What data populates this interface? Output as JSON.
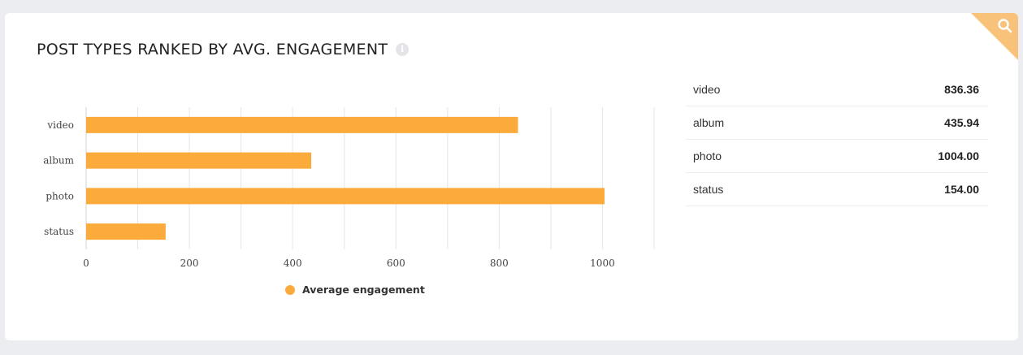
{
  "widget": {
    "title": "POST TYPES RANKED BY AVG. ENGAGEMENT",
    "info_icon": "info-icon",
    "corner_icon": "search-icon"
  },
  "colors": {
    "bar": "#fbab3c",
    "grid": "#e3e5e8",
    "corner": "#f8c27a"
  },
  "chart_data": {
    "type": "bar",
    "orientation": "horizontal",
    "categories": [
      "video",
      "album",
      "photo",
      "status"
    ],
    "series": [
      {
        "name": "Average engagement",
        "values": [
          836.36,
          435.94,
          1004.0,
          154.0
        ]
      }
    ],
    "xlim": [
      0,
      1100
    ],
    "xticks": [
      0,
      200,
      400,
      600,
      800,
      1000
    ],
    "grid": true,
    "legend": "bottom-center"
  },
  "legend": {
    "label": "Average engagement"
  },
  "summary": {
    "rows": [
      {
        "label": "video",
        "value": "836.36"
      },
      {
        "label": "album",
        "value": "435.94"
      },
      {
        "label": "photo",
        "value": "1004.00"
      },
      {
        "label": "status",
        "value": "154.00"
      }
    ]
  }
}
